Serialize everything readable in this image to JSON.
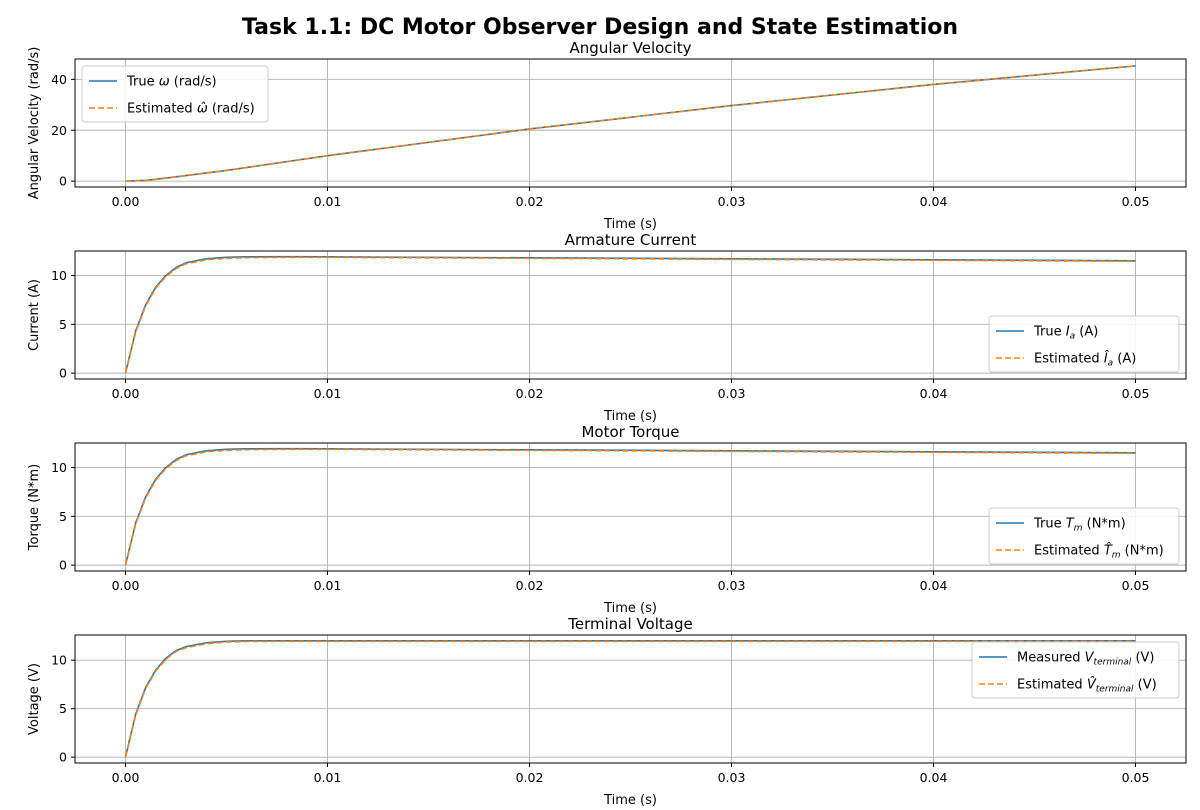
{
  "title": "Task 1.1: DC Motor Observer Design and State Estimation",
  "colors": {
    "true": "#1f77b4",
    "estimated": "#ff7f0e",
    "grid": "#b0b0b0"
  },
  "chart_data": [
    {
      "type": "line",
      "title": "Angular Velocity",
      "xlabel": "Time (s)",
      "ylabel": "Angular Velocity (rad/s)",
      "xlim": [
        -0.0025,
        0.0525
      ],
      "ylim": [
        -2.3,
        48
      ],
      "xticks": [
        0.0,
        0.01,
        0.02,
        0.03,
        0.04,
        0.05
      ],
      "xtick_labels": [
        "0.00",
        "0.01",
        "0.02",
        "0.03",
        "0.04",
        "0.05"
      ],
      "yticks": [
        0,
        20,
        40
      ],
      "yticks_labels": [
        "0",
        "20",
        "40"
      ],
      "grid": true,
      "legend_position": "upper-left",
      "series": [
        {
          "name": "True ω (rad/s)",
          "legend_main": "True ",
          "legend_sym": "ω",
          "legend_hat": false,
          "legend_sub": "",
          "legend_unit": " (rad/s)",
          "style": "solid",
          "x": [
            0.0,
            0.001,
            0.002,
            0.003,
            0.005,
            0.01,
            0.02,
            0.03,
            0.04,
            0.05
          ],
          "y": [
            0.0,
            0.3,
            1.2,
            2.2,
            4.2,
            10.0,
            20.5,
            29.7,
            38.0,
            45.3
          ]
        },
        {
          "name": "Estimated ω̂ (rad/s)",
          "legend_main": "Estimated ",
          "legend_sym": "ω",
          "legend_hat": true,
          "legend_sub": "",
          "legend_unit": " (rad/s)",
          "style": "dashed",
          "x": [
            0.0,
            0.001,
            0.002,
            0.003,
            0.005,
            0.01,
            0.02,
            0.03,
            0.04,
            0.05
          ],
          "y": [
            0.0,
            0.3,
            1.2,
            2.2,
            4.2,
            10.0,
            20.5,
            29.7,
            38.0,
            45.3
          ]
        }
      ]
    },
    {
      "type": "line",
      "title": "Armature Current",
      "xlabel": "Time (s)",
      "ylabel": "Current (A)",
      "xlim": [
        -0.0025,
        0.0525
      ],
      "ylim": [
        -0.6,
        12.5
      ],
      "xticks": [
        0.0,
        0.01,
        0.02,
        0.03,
        0.04,
        0.05
      ],
      "xtick_labels": [
        "0.00",
        "0.01",
        "0.02",
        "0.03",
        "0.04",
        "0.05"
      ],
      "yticks": [
        0,
        5,
        10
      ],
      "yticks_labels": [
        "0",
        "5",
        "10"
      ],
      "grid": true,
      "legend_position": "lower-right",
      "series": [
        {
          "name": "True Ia (A)",
          "legend_main": "True ",
          "legend_sym": "I",
          "legend_hat": false,
          "legend_sub": "a",
          "legend_unit": " (A)",
          "style": "solid",
          "x": [
            0.0,
            0.0005,
            0.001,
            0.0015,
            0.002,
            0.0025,
            0.003,
            0.004,
            0.005,
            0.006,
            0.008,
            0.01,
            0.02,
            0.03,
            0.04,
            0.05
          ],
          "y": [
            0.0,
            4.3,
            7.0,
            8.8,
            10.0,
            10.8,
            11.3,
            11.7,
            11.85,
            11.9,
            11.92,
            11.9,
            11.8,
            11.7,
            11.6,
            11.5
          ]
        },
        {
          "name": "Estimated Îa (A)",
          "legend_main": "Estimated ",
          "legend_sym": "I",
          "legend_hat": true,
          "legend_sub": "a",
          "legend_unit": " (A)",
          "style": "dashed",
          "x": [
            0.0,
            0.0005,
            0.001,
            0.0015,
            0.002,
            0.0025,
            0.003,
            0.004,
            0.005,
            0.006,
            0.008,
            0.01,
            0.02,
            0.03,
            0.04,
            0.05
          ],
          "y": [
            0.0,
            4.2,
            6.9,
            8.7,
            9.9,
            10.7,
            11.2,
            11.6,
            11.75,
            11.82,
            11.85,
            11.85,
            11.75,
            11.65,
            11.55,
            11.45
          ]
        }
      ]
    },
    {
      "type": "line",
      "title": "Motor Torque",
      "xlabel": "Time (s)",
      "ylabel": "Torque (N*m)",
      "xlim": [
        -0.0025,
        0.0525
      ],
      "ylim": [
        -0.6,
        12.5
      ],
      "xticks": [
        0.0,
        0.01,
        0.02,
        0.03,
        0.04,
        0.05
      ],
      "xtick_labels": [
        "0.00",
        "0.01",
        "0.02",
        "0.03",
        "0.04",
        "0.05"
      ],
      "yticks": [
        0,
        5,
        10
      ],
      "yticks_labels": [
        "0",
        "5",
        "10"
      ],
      "grid": true,
      "legend_position": "lower-right",
      "series": [
        {
          "name": "True Tm (N*m)",
          "legend_main": "True ",
          "legend_sym": "T",
          "legend_hat": false,
          "legend_sub": "m",
          "legend_unit": " (N*m)",
          "style": "solid",
          "x": [
            0.0,
            0.0005,
            0.001,
            0.0015,
            0.002,
            0.0025,
            0.003,
            0.004,
            0.005,
            0.006,
            0.008,
            0.01,
            0.02,
            0.03,
            0.04,
            0.05
          ],
          "y": [
            0.0,
            4.3,
            7.0,
            8.8,
            10.0,
            10.8,
            11.3,
            11.7,
            11.85,
            11.9,
            11.92,
            11.9,
            11.8,
            11.7,
            11.6,
            11.5
          ]
        },
        {
          "name": "Estimated T̂m (N*m)",
          "legend_main": "Estimated ",
          "legend_sym": "T",
          "legend_hat": true,
          "legend_sub": "m",
          "legend_unit": " (N*m)",
          "style": "dashed",
          "x": [
            0.0,
            0.0005,
            0.001,
            0.0015,
            0.002,
            0.0025,
            0.003,
            0.004,
            0.005,
            0.006,
            0.008,
            0.01,
            0.02,
            0.03,
            0.04,
            0.05
          ],
          "y": [
            0.0,
            4.2,
            6.9,
            8.7,
            9.9,
            10.7,
            11.2,
            11.6,
            11.75,
            11.82,
            11.85,
            11.85,
            11.75,
            11.65,
            11.55,
            11.45
          ]
        }
      ]
    },
    {
      "type": "line",
      "title": "Terminal Voltage",
      "xlabel": "Time (s)",
      "ylabel": "Voltage (V)",
      "xlim": [
        -0.0025,
        0.0525
      ],
      "ylim": [
        -0.6,
        12.6
      ],
      "xticks": [
        0.0,
        0.01,
        0.02,
        0.03,
        0.04,
        0.05
      ],
      "xtick_labels": [
        "0.00",
        "0.01",
        "0.02",
        "0.03",
        "0.04",
        "0.05"
      ],
      "yticks": [
        0,
        5,
        10
      ],
      "yticks_labels": [
        "0",
        "5",
        "10"
      ],
      "grid": true,
      "legend_position": "upper-right",
      "series": [
        {
          "name": "Measured Vterminal (V)",
          "legend_main": "Measured ",
          "legend_sym": "V",
          "legend_hat": false,
          "legend_sub": "terminal",
          "legend_unit": " (V)",
          "style": "solid",
          "x": [
            0.0,
            0.0005,
            0.001,
            0.0015,
            0.002,
            0.0025,
            0.003,
            0.004,
            0.005,
            0.006,
            0.008,
            0.01,
            0.02,
            0.03,
            0.04,
            0.05
          ],
          "y": [
            0.0,
            4.4,
            7.2,
            9.0,
            10.2,
            11.0,
            11.4,
            11.8,
            11.95,
            12.0,
            12.0,
            12.0,
            12.0,
            12.0,
            12.0,
            12.0
          ]
        },
        {
          "name": "Estimated V̂terminal (V)",
          "legend_main": "Estimated ",
          "legend_sym": "V",
          "legend_hat": true,
          "legend_sub": "terminal",
          "legend_unit": " (V)",
          "style": "dashed",
          "x": [
            0.0,
            0.0005,
            0.001,
            0.0015,
            0.002,
            0.0025,
            0.003,
            0.004,
            0.005,
            0.006,
            0.008,
            0.01,
            0.02,
            0.03,
            0.04,
            0.05
          ],
          "y": [
            0.0,
            4.3,
            7.1,
            8.9,
            10.1,
            10.9,
            11.3,
            11.7,
            11.88,
            11.93,
            11.95,
            11.95,
            11.95,
            11.95,
            11.95,
            11.95
          ]
        }
      ]
    }
  ]
}
